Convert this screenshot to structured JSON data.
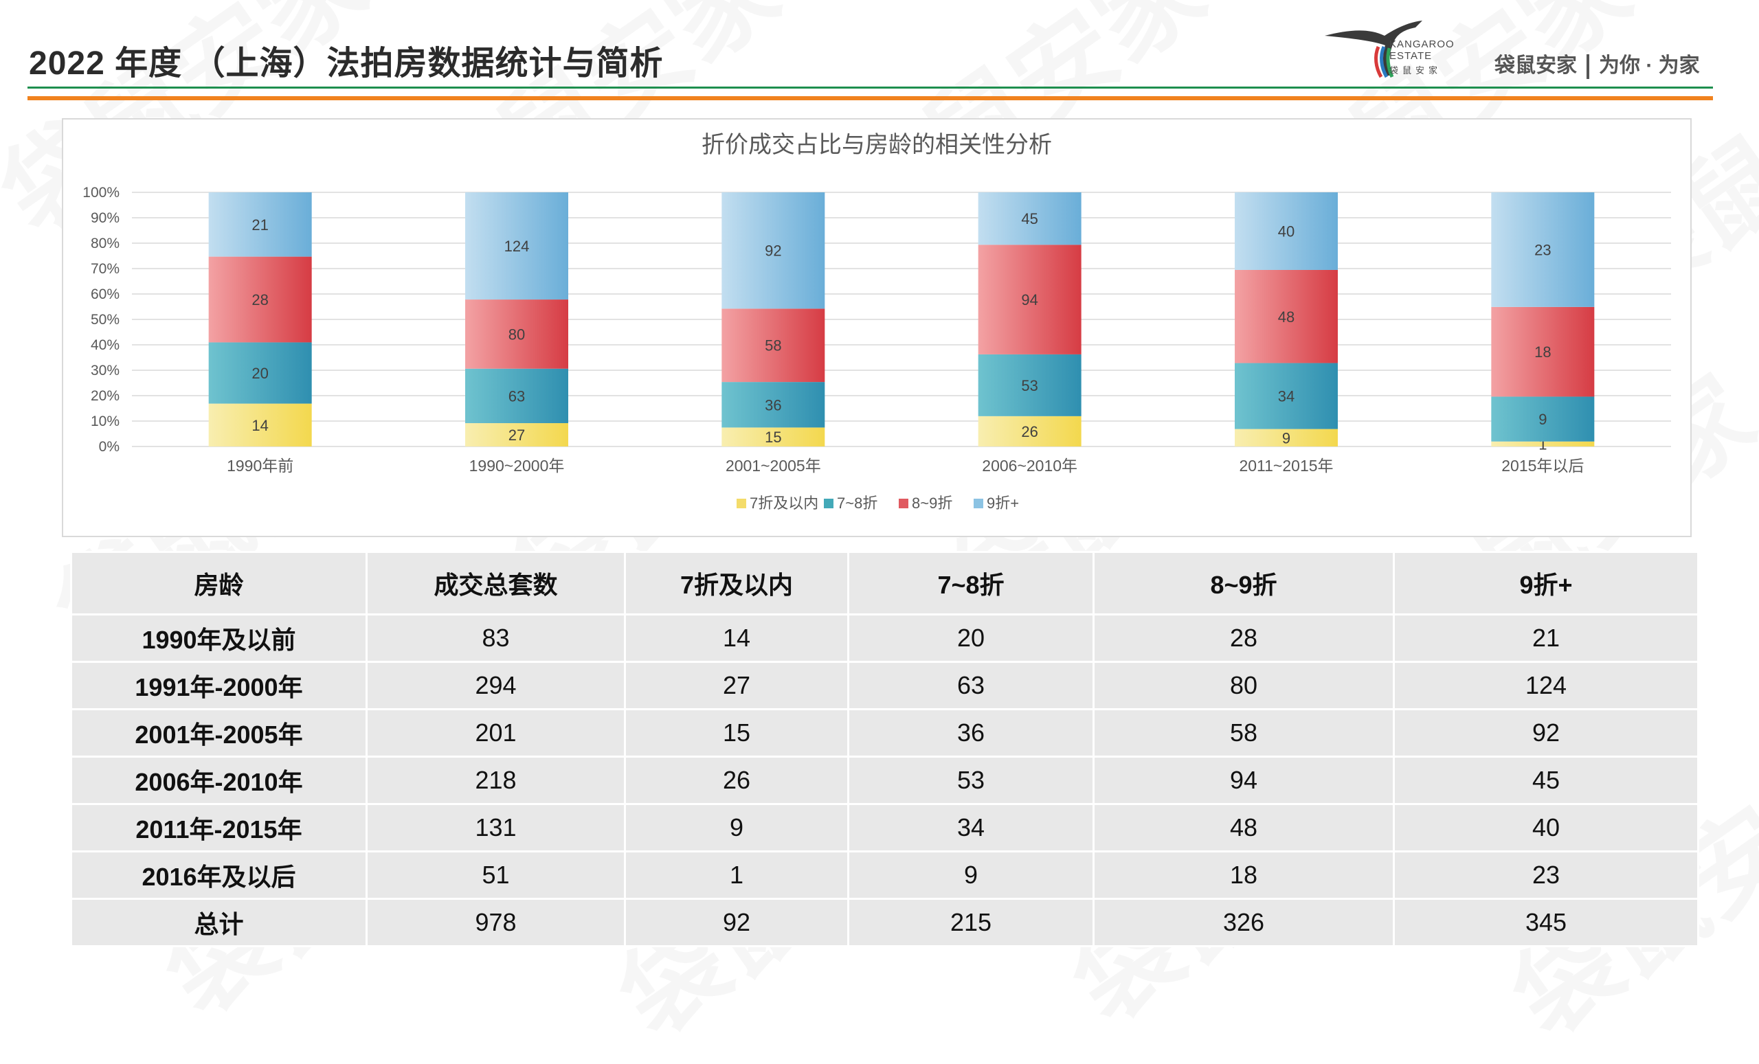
{
  "header": {
    "title": "2022 年度 （上海）法拍房数据统计与简析",
    "logo_en_line1": "KANGAROO",
    "logo_en_line2": "ESTATE",
    "logo_cn": "袋鼠安家",
    "slogan_brand": "袋鼠安家",
    "slogan_tail": "为你 · 为家",
    "colors": {
      "green_rule": "#1e8f4e",
      "orange_rule": "#f0821e"
    }
  },
  "chart_data": {
    "type": "bar",
    "stacked": "percent",
    "title": "折价成交占比与房龄的相关性分析",
    "categories": [
      "1990年前",
      "1990~2000年",
      "2001~2005年",
      "2006~2010年",
      "2011~2015年",
      "2015年以后"
    ],
    "series": [
      {
        "name": "7折及以内",
        "values": [
          14,
          27,
          15,
          26,
          9,
          1
        ],
        "color": "#f4dc6a"
      },
      {
        "name": "7~8折",
        "values": [
          20,
          63,
          36,
          53,
          34,
          9
        ],
        "color": "#43a9b8"
      },
      {
        "name": "8~9折",
        "values": [
          28,
          80,
          58,
          94,
          48,
          18
        ],
        "color": "#e05a60"
      },
      {
        "name": "9折+",
        "values": [
          21,
          124,
          92,
          45,
          40,
          23
        ],
        "color": "#8cc3e3"
      }
    ],
    "yticks": [
      "0%",
      "10%",
      "20%",
      "30%",
      "40%",
      "50%",
      "60%",
      "70%",
      "80%",
      "90%",
      "100%"
    ],
    "ylim": [
      0,
      100
    ],
    "grid": true,
    "legend": "bottom"
  },
  "table": {
    "headers": [
      "房龄",
      "成交总套数",
      "7折及以内",
      "7~8折",
      "8~9折",
      "9折+"
    ],
    "rows": [
      [
        "1990年及以前",
        "83",
        "14",
        "20",
        "28",
        "21"
      ],
      [
        "1991年-2000年",
        "294",
        "27",
        "63",
        "80",
        "124"
      ],
      [
        "2001年-2005年",
        "201",
        "15",
        "36",
        "58",
        "92"
      ],
      [
        "2006年-2010年",
        "218",
        "26",
        "53",
        "94",
        "45"
      ],
      [
        "2011年-2015年",
        "131",
        "9",
        "34",
        "48",
        "40"
      ],
      [
        "2016年及以后",
        "51",
        "1",
        "9",
        "18",
        "23"
      ],
      [
        "总计",
        "978",
        "92",
        "215",
        "326",
        "345"
      ]
    ]
  },
  "watermark": "袋鼠安家"
}
